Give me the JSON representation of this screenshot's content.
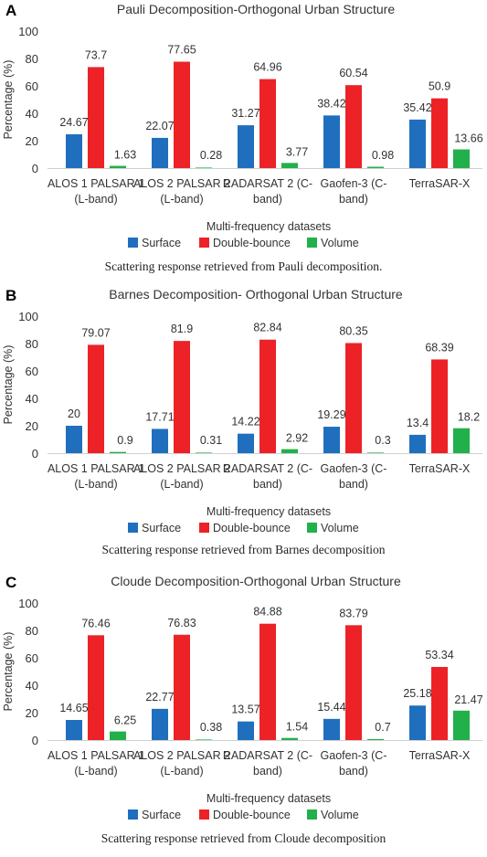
{
  "categories": [
    "ALOS 1 PALSAR 1 (L-band)",
    "ALOS 2 PALSAR 2 (L-band)",
    "RADARSAT 2 (C-band)",
    "Gaofen-3 (C-band)",
    "TerraSAR-X"
  ],
  "colors": {
    "surface": "#1f6fbe",
    "double_bounce": "#ec2227",
    "volume": "#22b04b"
  },
  "panels": [
    {
      "letter": "A",
      "caption": "Scattering response retrieved from Pauli decomposition."
    },
    {
      "letter": "B",
      "caption": "Scattering response retrieved from Barnes decomposition"
    },
    {
      "letter": "C",
      "caption": "Scattering response retrieved from Cloude decomposition"
    }
  ],
  "chart_data": [
    {
      "type": "bar",
      "title": "Pauli Decomposition-Orthogonal Urban Structure",
      "xlabel": "Multi-frequency datasets",
      "ylabel": "Percentage (%)",
      "ylim": [
        0,
        100
      ],
      "yticks": [
        0,
        20,
        40,
        60,
        80,
        100
      ],
      "grid": false,
      "legend_position": "bottom",
      "categories": [
        [
          "ALOS 1 PALSAR 1",
          "(L-band)"
        ],
        [
          "ALOS 2 PALSAR 2",
          "(L-band)"
        ],
        [
          "RADARSAT 2 (C-",
          "band)"
        ],
        [
          "Gaofen-3 (C-",
          "band)"
        ],
        [
          "TerraSAR-X"
        ]
      ],
      "series": [
        {
          "name": "Surface",
          "values": [
            24.67,
            22.07,
            31.27,
            38.42,
            35.42
          ],
          "labels": [
            "24.67",
            "22.07",
            "31.27",
            "38.42",
            "35.42"
          ]
        },
        {
          "name": "Double-bounce",
          "values": [
            73.7,
            77.65,
            64.96,
            60.54,
            50.9
          ],
          "labels": [
            "73.7",
            "77.65",
            "64.96",
            "60.54",
            "50.9"
          ]
        },
        {
          "name": "Volume",
          "values": [
            1.63,
            0.28,
            3.77,
            0.98,
            13.66
          ],
          "labels": [
            "1.63",
            "0.28",
            "3.77",
            "0.98",
            "13.66"
          ]
        }
      ]
    },
    {
      "type": "bar",
      "title": "Barnes Decomposition- Orthogonal Urban Structure",
      "xlabel": "Multi-frequency datasets",
      "ylabel": "Percentage (%)",
      "ylim": [
        0,
        100
      ],
      "yticks": [
        0,
        20,
        40,
        60,
        80,
        100
      ],
      "grid": false,
      "legend_position": "bottom",
      "categories": [
        [
          "ALOS 1 PALSAR 1",
          "(L-band)"
        ],
        [
          "ALOS 2 PALSAR 2",
          "(L-band)"
        ],
        [
          "RADARSAT 2 (C-",
          "band)"
        ],
        [
          "Gaofen-3 (C-",
          "band)"
        ],
        [
          "TerraSAR-X"
        ]
      ],
      "series": [
        {
          "name": "Surface",
          "values": [
            20,
            17.71,
            14.22,
            19.29,
            13.4
          ],
          "labels": [
            "20",
            "17.71",
            "14.22",
            "19.29",
            "13.4"
          ]
        },
        {
          "name": "Double-bounce",
          "values": [
            79.07,
            81.9,
            82.84,
            80.35,
            68.39
          ],
          "labels": [
            "79.07",
            "81.9",
            "82.84",
            "80.35",
            "68.39"
          ]
        },
        {
          "name": "Volume",
          "values": [
            0.9,
            0.31,
            2.92,
            0.3,
            18.2
          ],
          "labels": [
            "0.9",
            "0.31",
            "2.92",
            "0.3",
            "18.2"
          ]
        }
      ]
    },
    {
      "type": "bar",
      "title": "Cloude Decomposition-Orthogonal Urban Structure",
      "xlabel": "Multi-frequency datasets",
      "ylabel": "Percentage (%)",
      "ylim": [
        0,
        100
      ],
      "yticks": [
        0,
        20,
        40,
        60,
        80,
        100
      ],
      "grid": false,
      "legend_position": "bottom",
      "categories": [
        [
          "ALOS 1 PALSAR 1",
          "(L-band)"
        ],
        [
          "ALOS 2 PALSAR 2",
          "(L-band)"
        ],
        [
          "RADARSAT 2 (C-",
          "band)"
        ],
        [
          "Gaofen-3 (C-",
          "band)"
        ],
        [
          "TerraSAR-X"
        ]
      ],
      "series": [
        {
          "name": "Surface",
          "values": [
            14.65,
            22.77,
            13.57,
            15.44,
            25.18
          ],
          "labels": [
            "14.65",
            "22.77",
            "13.57",
            "15.44",
            "25.18"
          ]
        },
        {
          "name": "Double-bounce",
          "values": [
            76.46,
            76.83,
            84.88,
            83.79,
            53.34
          ],
          "labels": [
            "76.46",
            "76.83",
            "84.88",
            "83.79",
            "53.34"
          ]
        },
        {
          "name": "Volume",
          "values": [
            6.25,
            0.38,
            1.54,
            0.7,
            21.47
          ],
          "labels": [
            "6.25",
            "0.38",
            "1.54",
            "0.7",
            "21.47"
          ]
        }
      ]
    }
  ]
}
